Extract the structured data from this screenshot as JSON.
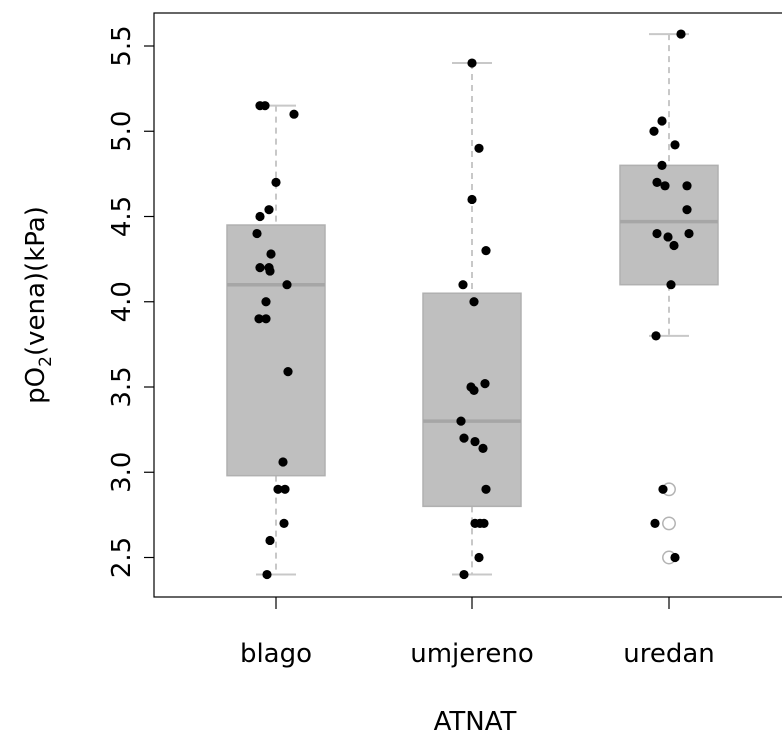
{
  "chart_data": {
    "type": "box",
    "xlabel": "ATNAT",
    "ylabel_main": "pO",
    "ylabel_sub": "2",
    "ylabel_rest": "(vena)(kPa)",
    "categories": [
      "blago",
      "umjereno",
      "uredan"
    ],
    "ylim": [
      2.35,
      5.65
    ],
    "yticks": [
      "2.5",
      "3.0",
      "3.5",
      "4.0",
      "4.5",
      "5.0",
      "5.5"
    ],
    "grid": false,
    "colors": {
      "box": "#bfbfbf",
      "median": "#a6a6a6",
      "whisker": "#c8c8c8",
      "point": "#000000",
      "outlier_stroke": "#b3b3b3"
    },
    "boxes": [
      {
        "category": "blago",
        "whisker_low": 2.4,
        "q1": 2.98,
        "median": 4.1,
        "q3": 4.45,
        "whisker_high": 5.15,
        "outliers": []
      },
      {
        "category": "umjereno",
        "whisker_low": 2.4,
        "q1": 2.8,
        "median": 3.3,
        "q3": 4.05,
        "whisker_high": 5.4,
        "outliers": []
      },
      {
        "category": "uredan",
        "whisker_low": 3.8,
        "q1": 4.1,
        "median": 4.47,
        "q3": 4.8,
        "whisker_high": 5.57,
        "outliers": [
          2.9,
          2.7,
          2.5
        ]
      }
    ],
    "points": [
      {
        "category": "blago",
        "jitter": -0.16,
        "y": 5.15
      },
      {
        "category": "blago",
        "jitter": -0.11,
        "y": 5.15
      },
      {
        "category": "blago",
        "jitter": 0.18,
        "y": 5.1
      },
      {
        "category": "blago",
        "jitter": 0.0,
        "y": 4.7
      },
      {
        "category": "blago",
        "jitter": -0.07,
        "y": 4.54
      },
      {
        "category": "blago",
        "jitter": -0.16,
        "y": 4.5
      },
      {
        "category": "blago",
        "jitter": -0.19,
        "y": 4.4
      },
      {
        "category": "blago",
        "jitter": -0.05,
        "y": 4.28
      },
      {
        "category": "blago",
        "jitter": -0.16,
        "y": 4.2
      },
      {
        "category": "blago",
        "jitter": -0.07,
        "y": 4.2
      },
      {
        "category": "blago",
        "jitter": -0.06,
        "y": 4.18
      },
      {
        "category": "blago",
        "jitter": 0.11,
        "y": 4.1
      },
      {
        "category": "blago",
        "jitter": -0.1,
        "y": 4.0
      },
      {
        "category": "blago",
        "jitter": -0.17,
        "y": 3.9
      },
      {
        "category": "blago",
        "jitter": -0.1,
        "y": 3.9
      },
      {
        "category": "blago",
        "jitter": 0.12,
        "y": 3.59
      },
      {
        "category": "blago",
        "jitter": 0.07,
        "y": 3.06
      },
      {
        "category": "blago",
        "jitter": 0.02,
        "y": 2.9
      },
      {
        "category": "blago",
        "jitter": 0.09,
        "y": 2.9
      },
      {
        "category": "blago",
        "jitter": 0.08,
        "y": 2.7
      },
      {
        "category": "blago",
        "jitter": -0.06,
        "y": 2.6
      },
      {
        "category": "blago",
        "jitter": -0.09,
        "y": 2.4
      },
      {
        "category": "umjereno",
        "jitter": 0.0,
        "y": 5.4
      },
      {
        "category": "umjereno",
        "jitter": 0.07,
        "y": 4.9
      },
      {
        "category": "umjereno",
        "jitter": 0.0,
        "y": 4.6
      },
      {
        "category": "umjereno",
        "jitter": 0.14,
        "y": 4.3
      },
      {
        "category": "umjereno",
        "jitter": -0.09,
        "y": 4.1
      },
      {
        "category": "umjereno",
        "jitter": 0.02,
        "y": 4.0
      },
      {
        "category": "umjereno",
        "jitter": 0.13,
        "y": 3.52
      },
      {
        "category": "umjereno",
        "jitter": -0.01,
        "y": 3.5
      },
      {
        "category": "umjereno",
        "jitter": 0.02,
        "y": 3.48
      },
      {
        "category": "umjereno",
        "jitter": -0.11,
        "y": 3.3
      },
      {
        "category": "umjereno",
        "jitter": -0.08,
        "y": 3.2
      },
      {
        "category": "umjereno",
        "jitter": 0.03,
        "y": 3.18
      },
      {
        "category": "umjereno",
        "jitter": 0.11,
        "y": 3.14
      },
      {
        "category": "umjereno",
        "jitter": 0.14,
        "y": 2.9
      },
      {
        "category": "umjereno",
        "jitter": 0.03,
        "y": 2.7
      },
      {
        "category": "umjereno",
        "jitter": 0.08,
        "y": 2.7
      },
      {
        "category": "umjereno",
        "jitter": 0.12,
        "y": 2.7
      },
      {
        "category": "umjereno",
        "jitter": 0.07,
        "y": 2.5
      },
      {
        "category": "umjereno",
        "jitter": -0.08,
        "y": 2.4
      },
      {
        "category": "uredan",
        "jitter": 0.12,
        "y": 5.57
      },
      {
        "category": "uredan",
        "jitter": -0.07,
        "y": 5.06
      },
      {
        "category": "uredan",
        "jitter": -0.15,
        "y": 5.0
      },
      {
        "category": "uredan",
        "jitter": 0.06,
        "y": 4.92
      },
      {
        "category": "uredan",
        "jitter": -0.07,
        "y": 4.8
      },
      {
        "category": "uredan",
        "jitter": -0.12,
        "y": 4.7
      },
      {
        "category": "uredan",
        "jitter": -0.04,
        "y": 4.68
      },
      {
        "category": "uredan",
        "jitter": 0.18,
        "y": 4.68
      },
      {
        "category": "uredan",
        "jitter": 0.18,
        "y": 4.54
      },
      {
        "category": "uredan",
        "jitter": -0.12,
        "y": 4.4
      },
      {
        "category": "uredan",
        "jitter": 0.2,
        "y": 4.4
      },
      {
        "category": "uredan",
        "jitter": -0.01,
        "y": 4.38
      },
      {
        "category": "uredan",
        "jitter": 0.05,
        "y": 4.33
      },
      {
        "category": "uredan",
        "jitter": 0.02,
        "y": 4.1
      },
      {
        "category": "uredan",
        "jitter": -0.13,
        "y": 3.8
      },
      {
        "category": "uredan",
        "jitter": -0.06,
        "y": 2.9
      },
      {
        "category": "uredan",
        "jitter": -0.14,
        "y": 2.7
      },
      {
        "category": "uredan",
        "jitter": 0.06,
        "y": 2.5
      }
    ]
  }
}
